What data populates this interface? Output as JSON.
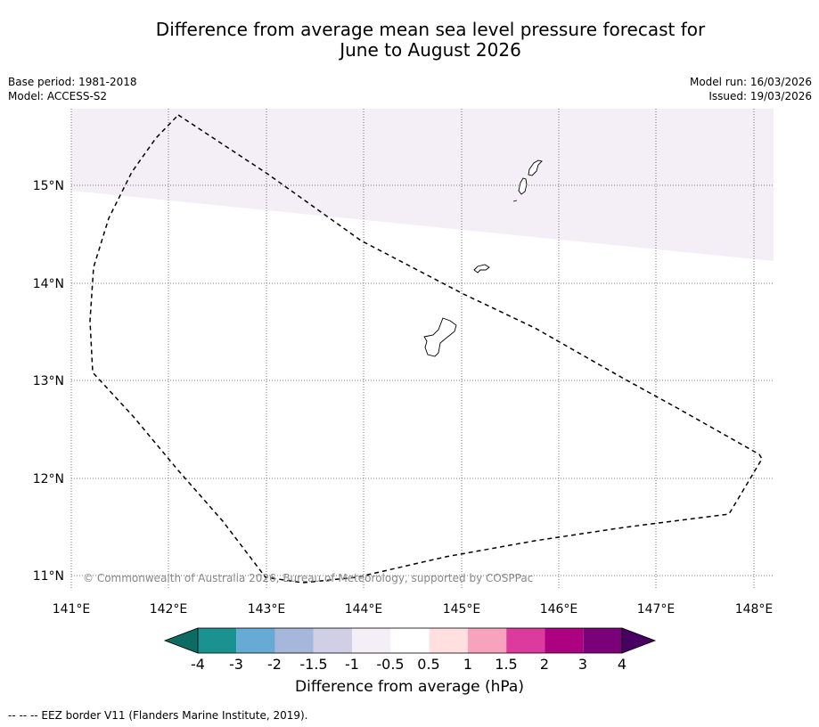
{
  "title": {
    "line1": "Difference from average mean sea level pressure forecast for",
    "line2": "June to August 2026"
  },
  "meta": {
    "base_period": "Base period: 1981-2018",
    "model": "Model: ACCESS-S2",
    "model_run": "Model run: 16/03/2026",
    "issued": "Issued: 19/03/2026"
  },
  "map": {
    "lat_labels": [
      "15°N",
      "14°N",
      "13°N",
      "12°N",
      "11°N"
    ],
    "lon_labels": [
      "141°E",
      "142°E",
      "143°E",
      "144°E",
      "145°E",
      "146°E",
      "147°E",
      "148°E"
    ],
    "copyright": "© Commonwealth of Australia 2026, Bureau of Meteorology, supported by COSPPac",
    "anomaly_fill_color": "#f4eef7"
  },
  "colorbar": {
    "tick_labels": [
      "-4",
      "-3",
      "-2",
      "-1.5",
      "-1",
      "-0.5",
      "0.5",
      "1",
      "1.5",
      "2",
      "3",
      "4"
    ],
    "colors": [
      "#0c6b62",
      "#1a9292",
      "#67abd4",
      "#a6b7dc",
      "#d0cfe6",
      "#f4eef7",
      "#ffffff",
      "#ffdfe0",
      "#f7a3bd",
      "#dd3a9e",
      "#ae0180",
      "#7a0178",
      "#4a0062"
    ],
    "label": "Difference from average (hPa)"
  },
  "footnote": "--  --  -- EEZ border V11 (Flanders Marine Institute, 2019)."
}
